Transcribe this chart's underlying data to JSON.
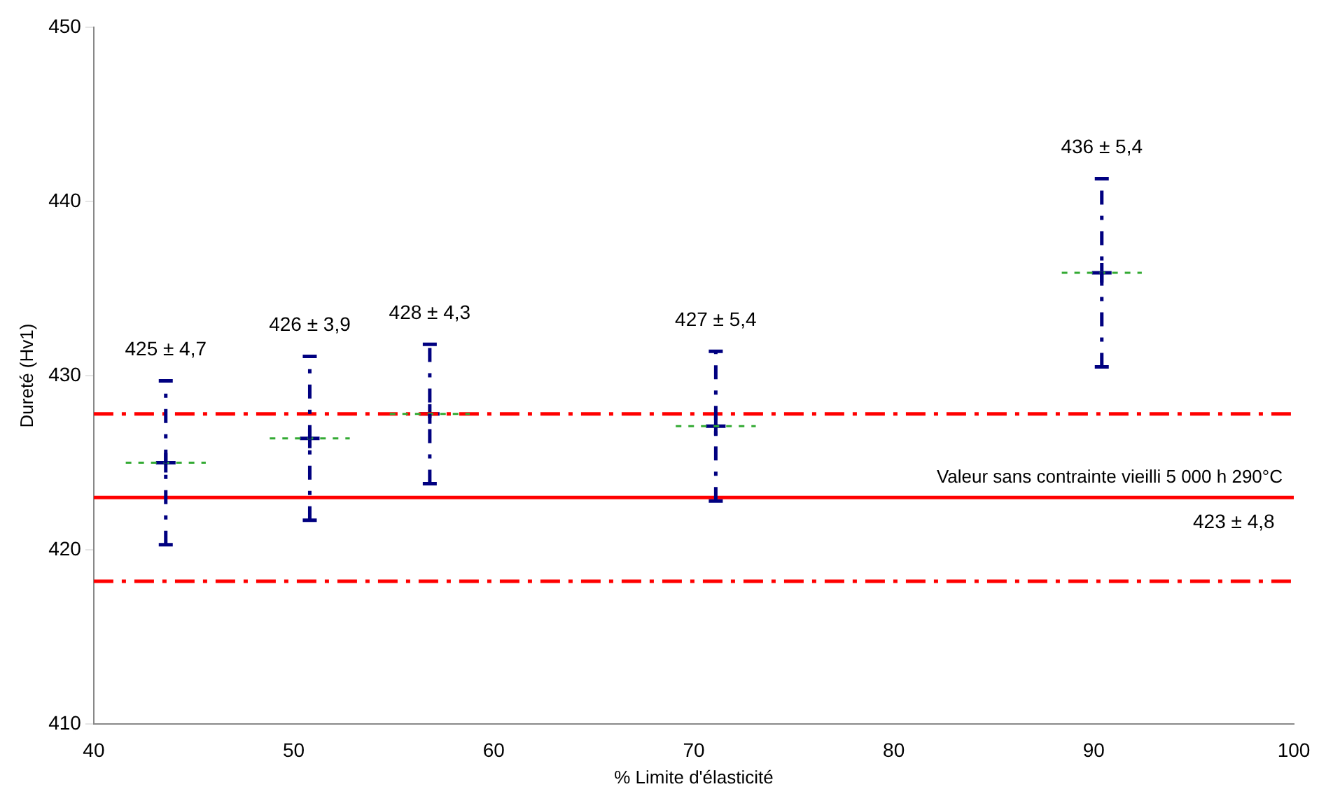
{
  "chart_data": {
    "type": "scatter",
    "xlabel": "% Limite d'élasticité",
    "ylabel": "Dureté (Hv1)",
    "x": [
      43.6,
      50.8,
      56.8,
      71.1,
      90.4
    ],
    "series": [
      {
        "color": "#000080",
        "values": [
          425.0,
          426.4,
          427.8,
          427.1,
          435.9
        ],
        "errors": [
          4.7,
          4.7,
          4.0,
          4.3,
          5.4
        ],
        "xerrors": [
          2,
          2,
          2,
          2,
          2
        ]
      }
    ],
    "marker": "cross",
    "grid": false,
    "legend": false,
    "xlim": [
      40,
      100
    ],
    "xticks": [
      40,
      50,
      60,
      70,
      80,
      90,
      100
    ],
    "ylim": [
      410,
      450
    ],
    "yticks": [
      410,
      420,
      430,
      440,
      450
    ],
    "ref_lines": [
      {
        "axis": "y",
        "value": 423,
        "label": "Valeur sans contrainte vieilli 5 000 h 290°C",
        "color": "#ff0000",
        "line_style": "solid"
      },
      {
        "axis": "y",
        "value": 427.8,
        "color": "#ff0000",
        "line_style": "dashed"
      },
      {
        "axis": "y",
        "value": 418.2,
        "color": "#ff0000",
        "line_style": "dashed"
      }
    ],
    "annotations": [
      "425 ± 4,7",
      "426 ± 3,9",
      "428 ± 4,3",
      "427 ± 5,4",
      "436 ± 5,4",
      {
        "text": "423 ± 4,8",
        "x": 97,
        "y": 423
      }
    ]
  }
}
